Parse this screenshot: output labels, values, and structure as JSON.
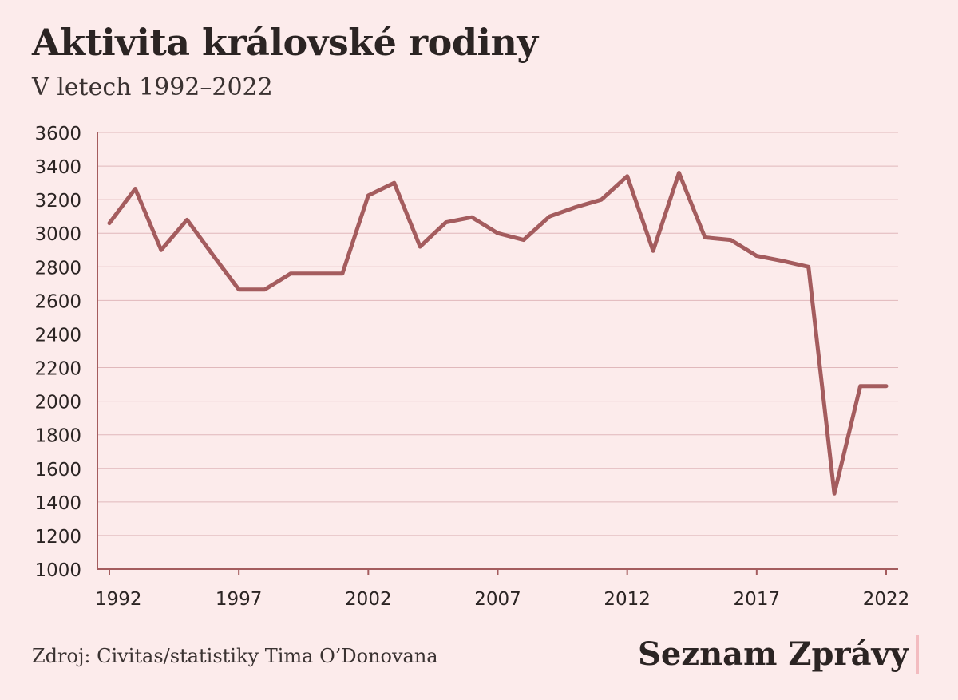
{
  "title": "Aktivita královské rodiny",
  "subtitle": "V letech 1992–2022",
  "source": "Zdroj: Civitas/statistiky Tima O’Donovana",
  "brand": "Seznam Zprávy",
  "colors": {
    "background": "#fcebeb",
    "line": "#a45c5e",
    "grid": "#e0b8bb",
    "axis": "#a45c5e",
    "text": "#2b2423",
    "brand_bar": "#f3bcc0"
  },
  "chart_data": {
    "type": "line",
    "x": [
      1992,
      1993,
      1994,
      1995,
      1996,
      1997,
      1998,
      1999,
      2000,
      2001,
      2002,
      2003,
      2004,
      2005,
      2006,
      2007,
      2008,
      2009,
      2010,
      2011,
      2012,
      2013,
      2014,
      2015,
      2016,
      2017,
      2018,
      2019,
      2020,
      2021,
      2022
    ],
    "series": [
      {
        "values": [
          3060,
          3265,
          2900,
          3080,
          2870,
          2665,
          2665,
          2760,
          2760,
          2760,
          3225,
          3300,
          2920,
          3065,
          3095,
          3000,
          2960,
          3100,
          3155,
          3200,
          3340,
          2895,
          3360,
          2975,
          2960,
          2865,
          2835,
          2800,
          1450,
          2090,
          2090
        ]
      }
    ],
    "ylim": [
      1000,
      3600
    ],
    "yticks": [
      1000,
      1200,
      1400,
      1600,
      1800,
      2000,
      2200,
      2400,
      2600,
      2800,
      3000,
      3200,
      3400,
      3600
    ],
    "xticks": [
      1992,
      1997,
      2002,
      2007,
      2012,
      2017,
      2022
    ],
    "xlabel": "",
    "ylabel": "",
    "grid": "horizontal"
  }
}
